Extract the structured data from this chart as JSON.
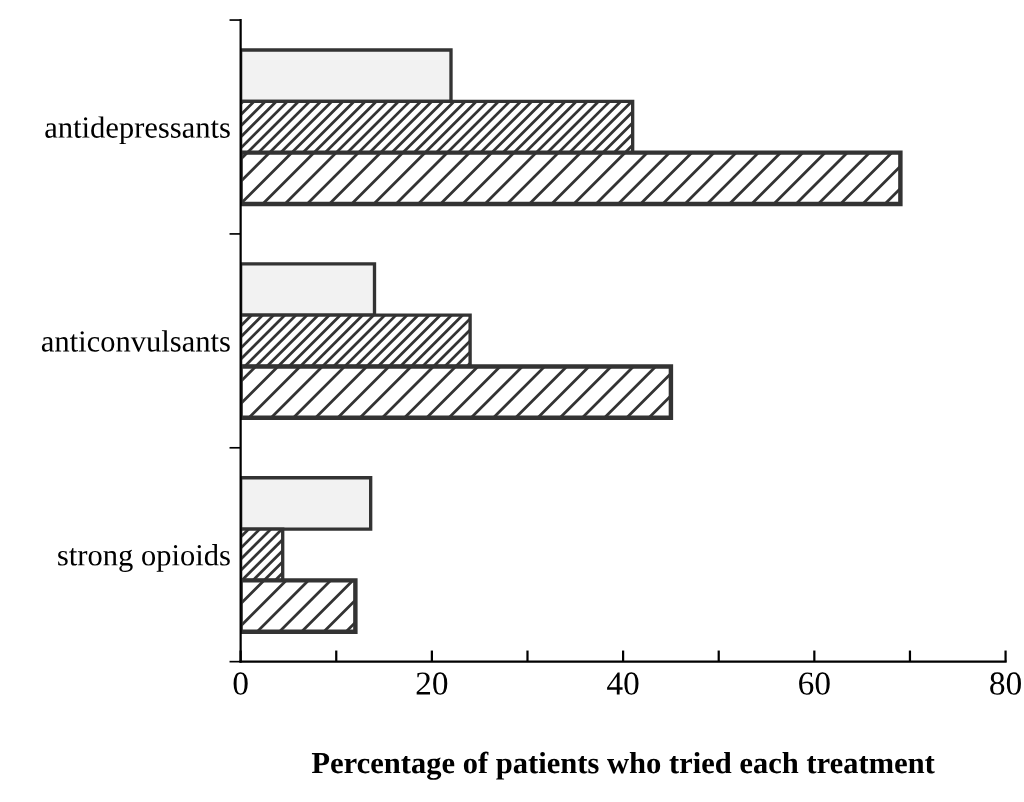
{
  "chart_data": {
    "type": "bar",
    "orientation": "horizontal",
    "xlabel": "Percentage of patients who tried each treatment",
    "categories": [
      "antidepressants",
      "anticonvulsants",
      "strong opioids"
    ],
    "series": [
      {
        "color": "#f2f2f2",
        "values": [
          22,
          14,
          13.6
        ]
      },
      {
        "color": "#333333",
        "values": [
          41,
          24,
          4.4
        ]
      },
      {
        "color": "#333333",
        "values": [
          69,
          45,
          12
        ]
      }
    ],
    "xlim": [
      0,
      80
    ],
    "xticks": [
      0,
      {
        "value": 10,
        "label": null
      },
      20,
      {
        "value": 30,
        "label": null
      },
      40,
      {
        "value": 50,
        "label": null
      },
      60,
      {
        "value": 70,
        "label": null
      },
      80
    ],
    "grid": false,
    "legend": false
  }
}
